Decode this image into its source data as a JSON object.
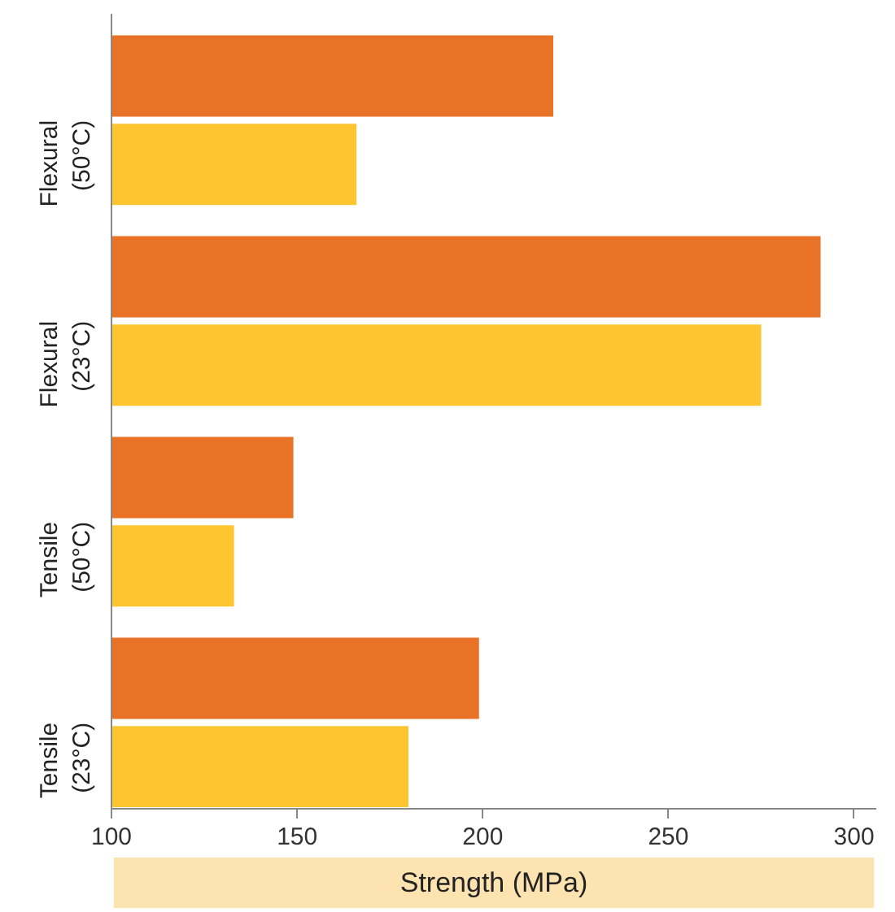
{
  "chart_data": {
    "type": "bar",
    "orientation": "horizontal",
    "categories": [
      "Flexural\n(50°C)",
      "Flexural\n(23°C)",
      "Tensile\n(50°C)",
      "Tensile\n(23°C)"
    ],
    "series": [
      {
        "color": "#e87225",
        "values": [
          219,
          291,
          149,
          199
        ]
      },
      {
        "color": "#fdc52f",
        "values": [
          166,
          275,
          133,
          180
        ]
      }
    ],
    "xlabel": "Strength (MPa)",
    "xlim": [
      100,
      306
    ],
    "xticks": [
      100,
      150,
      200,
      250,
      300
    ],
    "grid": false
  }
}
